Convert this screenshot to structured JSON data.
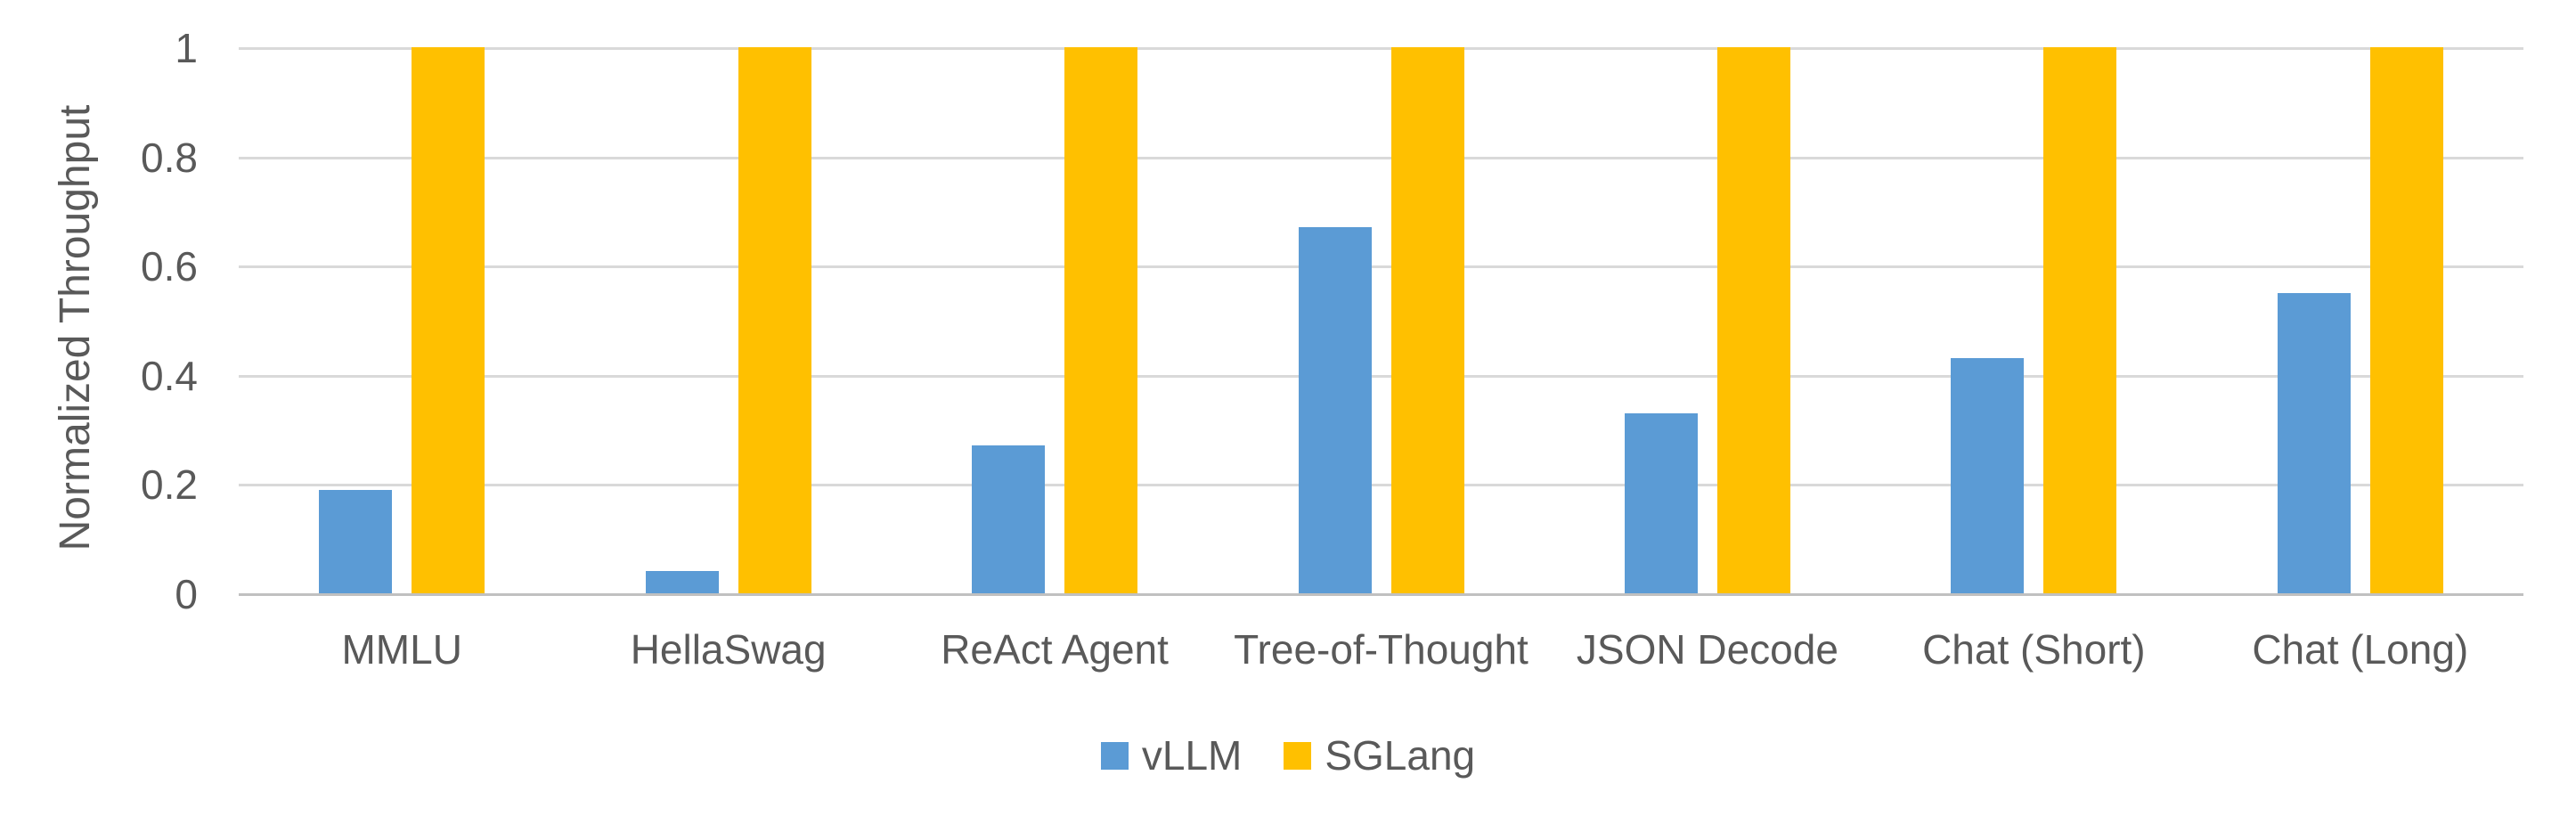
{
  "chart_data": {
    "type": "bar",
    "title": "",
    "xlabel": "",
    "ylabel": "Normalized Throughput",
    "categories": [
      "MMLU",
      "HellaSwag",
      "ReAct Agent",
      "Tree-of-Thought",
      "JSON Decode",
      "Chat (Short)",
      "Chat (Long)"
    ],
    "series": [
      {
        "name": "vLLM",
        "color": "#5B9BD5",
        "values": [
          0.19,
          0.04,
          0.27,
          0.67,
          0.33,
          0.43,
          0.55
        ]
      },
      {
        "name": "SGLang",
        "color": "#FFC000",
        "values": [
          1,
          1,
          1,
          1,
          1,
          1,
          1
        ]
      }
    ],
    "ylim": [
      0,
      1
    ],
    "y_ticks": [
      0,
      0.2,
      0.4,
      0.6,
      0.8,
      1
    ],
    "y_tick_labels": [
      "0",
      "0.2",
      "0.4",
      "0.6",
      "0.8",
      "1"
    ],
    "grid": true,
    "legend_position": "bottom",
    "colors": {
      "gridline": "#D9D9D9",
      "axis_line": "#C0C0C0",
      "text": "#595959",
      "background": "#FFFFFF"
    }
  }
}
